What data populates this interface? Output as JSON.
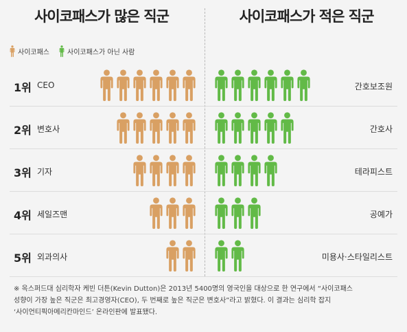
{
  "titles": {
    "left": "사이코패스가 많은 직군",
    "right": "사이코패스가 적은 직군"
  },
  "legend": {
    "psychopath": "사이코패스",
    "non_psychopath": "사이코패스가 아닌 사람"
  },
  "colors": {
    "psychopath": "#d9a063",
    "non_psychopath": "#62ba47"
  },
  "icon": "person-icon",
  "rows": [
    {
      "rank": "1위",
      "most": "CEO",
      "most_count": 6,
      "least": "간호보조원",
      "least_count": 6
    },
    {
      "rank": "2위",
      "most": "변호사",
      "most_count": 5,
      "least": "간호사",
      "least_count": 5
    },
    {
      "rank": "3위",
      "most": "기자",
      "most_count": 4,
      "least": "테라피스트",
      "least_count": 4
    },
    {
      "rank": "4위",
      "most": "세일즈맨",
      "most_count": 3,
      "least": "공예가",
      "least_count": 3
    },
    {
      "rank": "5위",
      "most": "외과의사",
      "most_count": 2,
      "least": "미용사·스타일리스트",
      "least_count": 2
    }
  ],
  "footnote": {
    "line1": "※ 옥스퍼드대 심리학자 케빈 더튼(Kevin Dutton)은 2013년 5400명의 영국인을 대상으로 한 연구에서 “사이코패스",
    "line2": "성향이 가장 높은 직군은 최고경영자(CEO), 두 번째로 높은 직군은 변호사”라고 밝혔다. 이 결과는 심리학 잡지",
    "line3": "‘사이언티픽아메리칸마인드’ 온라인판에 발표됐다."
  }
}
